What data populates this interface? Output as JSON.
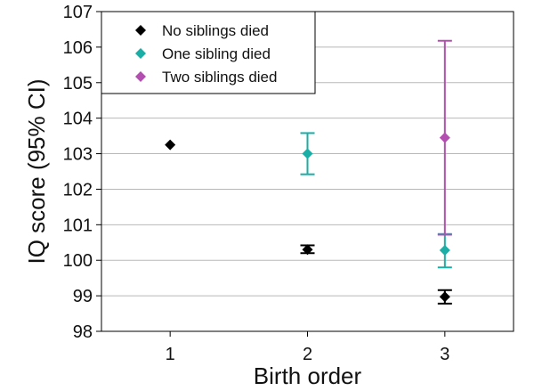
{
  "chart_data": {
    "type": "scatter",
    "xlabel": "Birth order",
    "ylabel": "IQ score (95% CI)",
    "x_ticks": [
      "1",
      "2",
      "3"
    ],
    "x_range": [
      0.5,
      3.5
    ],
    "y_ticks": [
      "98",
      "99",
      "100",
      "101",
      "102",
      "103",
      "104",
      "105",
      "106",
      "107"
    ],
    "ylim": [
      98,
      107
    ],
    "grid": "horizontal",
    "legend_position": "top-left",
    "series": [
      {
        "name": "No siblings died",
        "color": "#000000",
        "points": [
          {
            "x": 1,
            "y": 103.25,
            "low": 103.25,
            "high": 103.25
          },
          {
            "x": 2,
            "y": 100.3,
            "low": 100.2,
            "high": 100.42
          },
          {
            "x": 3,
            "y": 98.97,
            "low": 98.78,
            "high": 99.16
          }
        ]
      },
      {
        "name": "One sibling died",
        "color": "#1aaea6",
        "points": [
          {
            "x": 2,
            "y": 103.0,
            "low": 102.42,
            "high": 103.58
          },
          {
            "x": 3,
            "y": 100.28,
            "low": 99.8,
            "high": 100.74
          }
        ]
      },
      {
        "name": "Two siblings died",
        "color": "#b34fb0",
        "points": [
          {
            "x": 3,
            "y": 103.45,
            "low": 100.72,
            "high": 106.18
          }
        ]
      }
    ]
  }
}
